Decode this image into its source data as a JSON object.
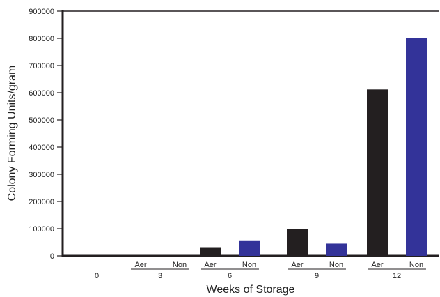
{
  "chart_data": {
    "type": "bar",
    "title": "",
    "xlabel": "Weeks of Storage",
    "ylabel": "Colony Forming Units/gram",
    "ylim": [
      0,
      900000
    ],
    "yticks": [
      "0",
      "100000",
      "200000",
      "300000",
      "400000",
      "500000",
      "600000",
      "700000",
      "800000",
      "900000"
    ],
    "groups": [
      {
        "label": "0",
        "bars": []
      },
      {
        "label": "3",
        "bars": [
          {
            "sublabel": "Aer",
            "value": 0,
            "color": "#231f20"
          },
          {
            "sublabel": "Non",
            "value": 0,
            "color": "#333399"
          }
        ]
      },
      {
        "label": "6",
        "bars": [
          {
            "sublabel": "Aer",
            "value": 32000,
            "color": "#231f20"
          },
          {
            "sublabel": "Non",
            "value": 57000,
            "color": "#333399"
          }
        ]
      },
      {
        "label": "9",
        "bars": [
          {
            "sublabel": "Aer",
            "value": 98000,
            "color": "#231f20"
          },
          {
            "sublabel": "Non",
            "value": 45000,
            "color": "#333399"
          }
        ]
      },
      {
        "label": "12",
        "bars": [
          {
            "sublabel": "Aer",
            "value": 612000,
            "color": "#231f20"
          },
          {
            "sublabel": "Non",
            "value": 800000,
            "color": "#333399"
          }
        ]
      }
    ],
    "grid": false,
    "legend": "none",
    "colors": {
      "aer": "#231f20",
      "non": "#333399",
      "axis": "#231f20"
    }
  }
}
